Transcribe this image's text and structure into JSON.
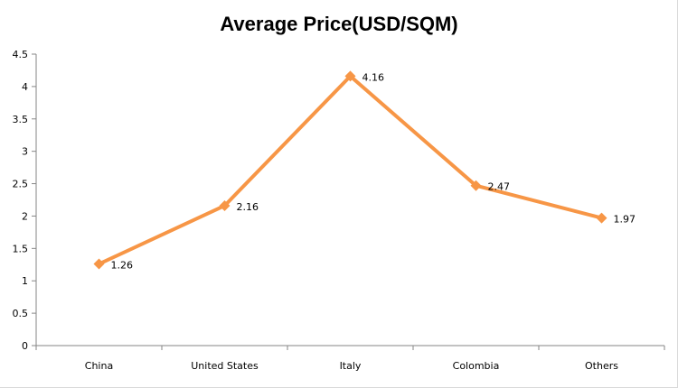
{
  "chart_data": {
    "type": "line",
    "title": "Average Price(USD/SQM)",
    "xlabel": "",
    "ylabel": "",
    "categories": [
      "China",
      "United States",
      "Italy",
      "Colombia",
      "Others"
    ],
    "series": [
      {
        "values": [
          1.26,
          2.16,
          4.16,
          2.47,
          1.97
        ],
        "color": "#f79646"
      }
    ],
    "data_labels": [
      "1.26",
      "2.16",
      "4.16",
      "2.47",
      "1.97"
    ],
    "ylim": [
      0,
      4.5
    ],
    "yticks": [
      0,
      0.5,
      1,
      1.5,
      2,
      2.5,
      3,
      3.5,
      4,
      4.5
    ],
    "ytick_labels": [
      "0",
      "0.5",
      "1",
      "1.5",
      "2",
      "2.5",
      "3",
      "3.5",
      "4",
      "4.5"
    ],
    "grid": false,
    "legend": "none"
  }
}
